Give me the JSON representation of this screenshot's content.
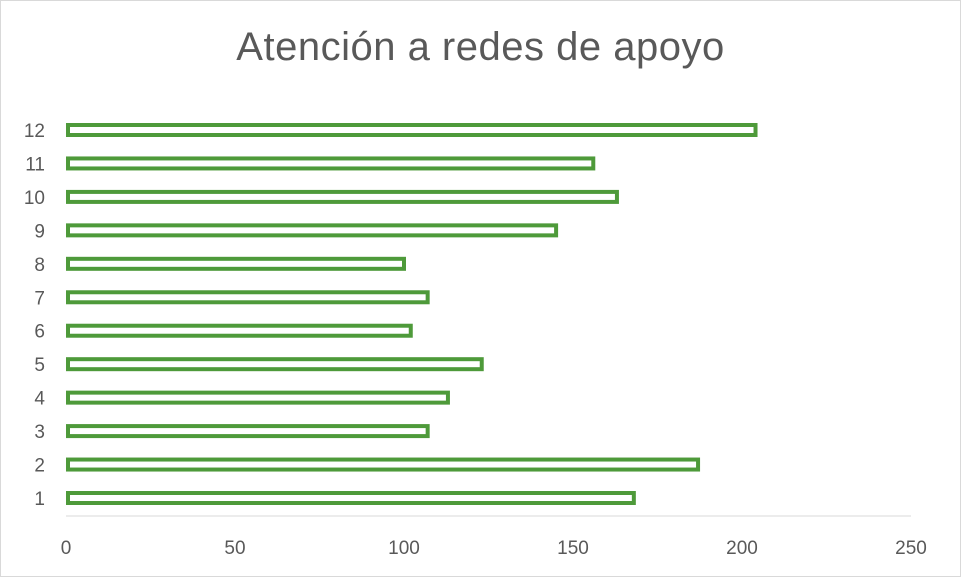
{
  "chart_data": {
    "type": "bar",
    "orientation": "horizontal",
    "title": "Atención a redes de apoyo",
    "categories": [
      "1",
      "2",
      "3",
      "4",
      "5",
      "6",
      "7",
      "8",
      "9",
      "10",
      "11",
      "12"
    ],
    "values": [
      168,
      187,
      107,
      113,
      123,
      102,
      107,
      100,
      145,
      163,
      156,
      204
    ],
    "xlim": [
      0,
      250
    ],
    "xticks": [
      "0",
      "50",
      "100",
      "150",
      "200",
      "250"
    ],
    "grid": false,
    "legend": "none",
    "colors": {
      "bar_outline": "#4e9a3a",
      "bar_fill": "#ffffff",
      "axis": "#d9d9d9",
      "text": "#595959"
    }
  }
}
